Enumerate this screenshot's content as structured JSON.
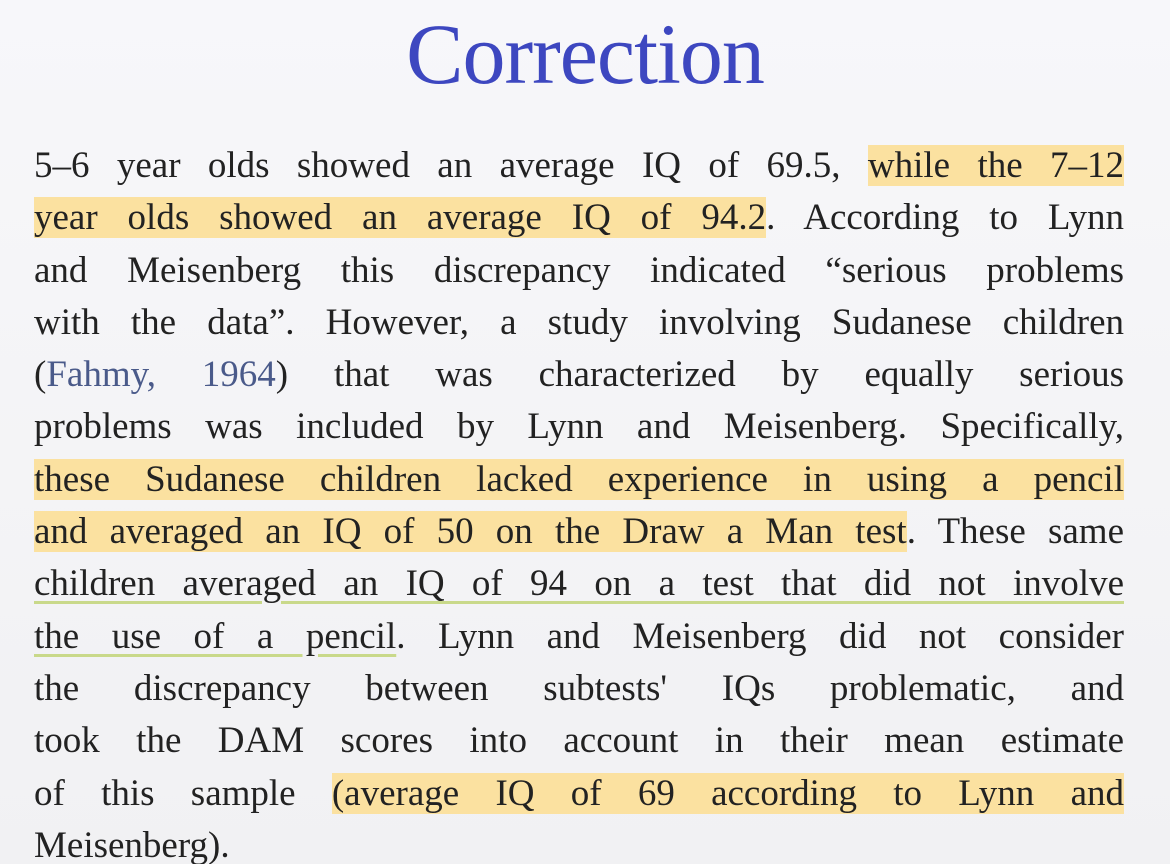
{
  "title": "Correction",
  "body": {
    "lines": [
      [
        "5–6 year olds showed an average IQ of 69.5, ",
        "while the 7–12"
      ],
      [
        "year olds showed an average IQ of 94.2",
        ". According to Lynn"
      ],
      [
        "and Meisenberg this discrepancy indicated “serious problems"
      ],
      [
        "with the data”. However, a study involving Sudanese children"
      ],
      [
        "(",
        "Fahmy, 1964",
        ") that was characterized by equally serious"
      ],
      [
        "problems was included by Lynn and Meisenberg. Specifically,"
      ],
      [
        "these Sudanese children lacked experience in using a pencil"
      ],
      [
        "and averaged an IQ of 50 on the Draw a Man test",
        ". These same"
      ],
      [
        "children averaged an IQ of 94 on a test that did not involve"
      ],
      [
        "the use of a pencil",
        ". Lynn and Meisenberg did not consider"
      ],
      [
        "the discrepancy between subtests' IQs problematic, and"
      ],
      [
        "took the DAM scores into account in their mean estimate"
      ],
      [
        "of this sample ",
        "(average IQ of 69 according to Lynn and"
      ],
      [
        "Meisenberg)."
      ]
    ]
  }
}
